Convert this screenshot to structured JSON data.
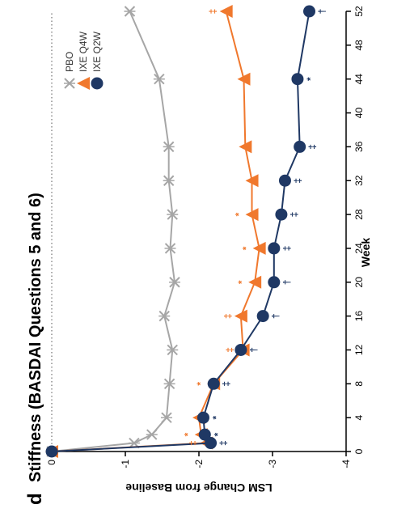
{
  "chart_data": {
    "type": "line",
    "panel_label": "d",
    "title": "Stiffness (BASDAI Questions 5 and 6)",
    "xlabel": "Week",
    "ylabel": "LSM Change from Baseline",
    "xlim": [
      0,
      52
    ],
    "ylim": [
      -4,
      0
    ],
    "x_ticks": [
      0,
      4,
      8,
      12,
      16,
      20,
      24,
      28,
      32,
      36,
      40,
      44,
      48,
      52
    ],
    "y_ticks": [
      0,
      -1,
      -2,
      -3,
      -4
    ],
    "x_tick_labels": [
      "0",
      "4",
      "8",
      "12",
      "16",
      "20",
      "24",
      "28",
      "32",
      "36",
      "40",
      "44",
      "48",
      "52"
    ],
    "y_tick_labels": [
      "0",
      "-1",
      "-2",
      "-3",
      "-4"
    ],
    "reference_line_y": 0,
    "legend_position": "top-right",
    "series": [
      {
        "name": "PBO",
        "color": "#a6a6a6",
        "marker": "x",
        "x": [
          0,
          1,
          2,
          4,
          8,
          12,
          16,
          20,
          24,
          28,
          32,
          36,
          44,
          52
        ],
        "y": [
          0,
          -1.12,
          -1.36,
          -1.56,
          -1.6,
          -1.64,
          -1.53,
          -1.67,
          -1.61,
          -1.64,
          -1.59,
          -1.59,
          -1.46,
          -1.06
        ],
        "annotations": []
      },
      {
        "name": "IXE Q4W",
        "color": "#f0782d",
        "marker": "triangle",
        "x": [
          0,
          1,
          2,
          4,
          8,
          12,
          16,
          20,
          24,
          28,
          32,
          36,
          44,
          52
        ],
        "y": [
          0,
          -2.1,
          -2.03,
          -2.0,
          -2.2,
          -2.6,
          -2.57,
          -2.76,
          -2.82,
          -2.72,
          -2.72,
          -2.63,
          -2.61,
          -2.37
        ],
        "annotations": [
          {
            "x": 1,
            "text": "‡"
          },
          {
            "x": 2,
            "text": "*"
          },
          {
            "x": 8,
            "text": "*"
          },
          {
            "x": 12,
            "text": "‡"
          },
          {
            "x": 16,
            "text": "‡"
          },
          {
            "x": 20,
            "text": "*"
          },
          {
            "x": 24,
            "text": "*"
          },
          {
            "x": 28,
            "text": "*"
          },
          {
            "x": 52,
            "text": "‡"
          }
        ]
      },
      {
        "name": "IXE Q2W",
        "color": "#1f3864",
        "marker": "circle",
        "x": [
          0,
          1,
          2,
          4,
          8,
          12,
          16,
          20,
          24,
          28,
          32,
          36,
          44,
          52
        ],
        "y": [
          0,
          -2.16,
          -2.08,
          -2.06,
          -2.2,
          -2.57,
          -2.87,
          -3.02,
          -3.02,
          -3.12,
          -3.17,
          -3.37,
          -3.34,
          -3.5
        ],
        "annotations": [
          {
            "x": 1,
            "text": "‡"
          },
          {
            "x": 2,
            "text": "*"
          },
          {
            "x": 4,
            "text": "*"
          },
          {
            "x": 8,
            "text": "‡"
          },
          {
            "x": 12,
            "text": "†"
          },
          {
            "x": 16,
            "text": "†"
          },
          {
            "x": 20,
            "text": "†"
          },
          {
            "x": 24,
            "text": "‡"
          },
          {
            "x": 28,
            "text": "‡"
          },
          {
            "x": 32,
            "text": "‡"
          },
          {
            "x": 36,
            "text": "‡"
          },
          {
            "x": 44,
            "text": "*"
          },
          {
            "x": 52,
            "text": "†"
          }
        ]
      }
    ]
  }
}
